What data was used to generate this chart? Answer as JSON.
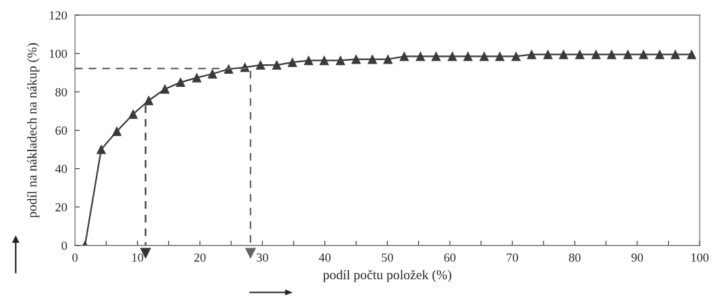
{
  "chart_data": {
    "type": "line",
    "xlabel": "podíl počtu položek (%)",
    "ylabel": "podíl na nákladech na nákup (%)",
    "xlim": [
      0,
      100
    ],
    "ylim": [
      0,
      120
    ],
    "xticks": [
      0,
      {
        "value": 5,
        "label": null
      },
      10,
      {
        "value": 15,
        "label": null
      },
      20,
      {
        "value": 25,
        "label": null
      },
      30,
      {
        "value": 35,
        "label": null
      },
      40,
      {
        "value": 45,
        "label": null
      },
      50,
      {
        "value": 55,
        "label": null
      },
      60,
      {
        "value": 65,
        "label": null
      },
      70,
      {
        "value": 75,
        "label": null
      },
      80,
      {
        "value": 85,
        "label": null
      },
      90,
      {
        "value": 95,
        "label": null
      },
      100
    ],
    "yticks": [
      0,
      20,
      40,
      60,
      80,
      100,
      120
    ],
    "grid": false,
    "legend": false,
    "series": [
      {
        "color": "#3a3a3a",
        "marker": "triangle",
        "line_style": "solid",
        "x": [
          1.6,
          4.2,
          6.7,
          9.3,
          11.8,
          14.4,
          16.9,
          19.5,
          22.0,
          24.6,
          27.2,
          29.7,
          32.3,
          34.8,
          37.4,
          39.9,
          42.5,
          45.0,
          47.6,
          50.1,
          52.7,
          55.3,
          57.8,
          60.4,
          62.9,
          65.5,
          68.0,
          70.6,
          73.1,
          75.7,
          78.2,
          80.8,
          83.4,
          85.9,
          88.5,
          91.0,
          93.6,
          96.1,
          98.7
        ],
        "values": [
          0,
          50,
          59.5,
          68.4,
          75.5,
          81.5,
          85,
          87.4,
          89.4,
          91.9,
          92.8,
          94,
          94,
          95.4,
          96.4,
          96.4,
          96.4,
          97,
          97,
          97,
          98.5,
          98.5,
          98.5,
          98.5,
          98.5,
          98.5,
          98.5,
          98.5,
          99.5,
          99.5,
          99.5,
          99.5,
          99.5,
          99.5,
          99.5,
          99.5,
          99.5,
          99.5,
          99.5
        ]
      },
      {
        "color": "#666666",
        "marker": "none",
        "line_style": "dashed",
        "x": [
          0,
          28.1,
          28.1
        ],
        "values": [
          92.2,
          92.2,
          0
        ]
      },
      {
        "color": "#333333",
        "marker": "none",
        "line_style": "dashed",
        "x": [
          11.3,
          11.3
        ],
        "values": [
          73,
          0
        ]
      }
    ]
  }
}
